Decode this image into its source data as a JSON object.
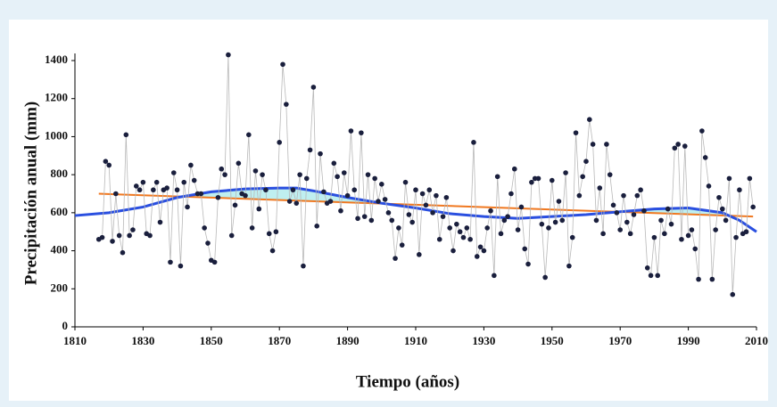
{
  "chart_data": {
    "type": "scatter",
    "xlabel": "Tiempo (años)",
    "ylabel": "Precipitación anual (mm)",
    "xlim": [
      1810,
      2010
    ],
    "xticks": [
      1810,
      1830,
      1850,
      1870,
      1890,
      1910,
      1930,
      1950,
      1970,
      1990,
      2010
    ],
    "ylim": [
      0,
      1400
    ],
    "yticks": [
      0,
      200,
      400,
      600,
      800,
      1000,
      1200,
      1400
    ],
    "series": [
      {
        "color": "#1a1f3d",
        "x": [
          1817,
          1818,
          1819,
          1820,
          1821,
          1822,
          1823,
          1824,
          1825,
          1826,
          1827,
          1828,
          1829,
          1830,
          1831,
          1832,
          1833,
          1834,
          1835,
          1836,
          1837,
          1838,
          1839,
          1840,
          1841,
          1842,
          1843,
          1844,
          1845,
          1846,
          1847,
          1848,
          1849,
          1850,
          1851,
          1852,
          1853,
          1854,
          1855,
          1856,
          1857,
          1858,
          1859,
          1860,
          1861,
          1862,
          1863,
          1864,
          1865,
          1866,
          1867,
          1868,
          1869,
          1870,
          1871,
          1872,
          1873,
          1874,
          1875,
          1876,
          1877,
          1878,
          1879,
          1880,
          1881,
          1882,
          1883,
          1884,
          1885,
          1886,
          1887,
          1888,
          1889,
          1890,
          1891,
          1892,
          1893,
          1894,
          1895,
          1896,
          1897,
          1898,
          1899,
          1900,
          1901,
          1902,
          1903,
          1904,
          1905,
          1906,
          1907,
          1908,
          1909,
          1910,
          1911,
          1912,
          1913,
          1914,
          1915,
          1916,
          1917,
          1918,
          1919,
          1920,
          1921,
          1922,
          1923,
          1924,
          1925,
          1926,
          1927,
          1928,
          1929,
          1930,
          1931,
          1932,
          1933,
          1934,
          1935,
          1936,
          1937,
          1938,
          1939,
          1940,
          1941,
          1942,
          1943,
          1944,
          1945,
          1946,
          1947,
          1948,
          1949,
          1950,
          1951,
          1952,
          1953,
          1954,
          1955,
          1956,
          1957,
          1958,
          1959,
          1960,
          1961,
          1962,
          1963,
          1964,
          1965,
          1966,
          1967,
          1968,
          1969,
          1970,
          1971,
          1972,
          1973,
          1974,
          1975,
          1976,
          1977,
          1978,
          1979,
          1980,
          1981,
          1982,
          1983,
          1984,
          1985,
          1986,
          1987,
          1988,
          1989,
          1990,
          1991,
          1992,
          1993,
          1994,
          1995,
          1996,
          1997,
          1998,
          1999,
          2000,
          2001,
          2002,
          2003,
          2004,
          2005,
          2006,
          2007,
          2008,
          2009
        ],
        "values": [
          460,
          470,
          870,
          850,
          450,
          700,
          480,
          390,
          1010,
          480,
          510,
          740,
          720,
          760,
          490,
          480,
          720,
          760,
          550,
          720,
          730,
          340,
          810,
          720,
          320,
          760,
          630,
          850,
          770,
          700,
          700,
          520,
          440,
          350,
          340,
          680,
          830,
          800,
          1430,
          480,
          640,
          860,
          700,
          690,
          1010,
          520,
          820,
          620,
          800,
          720,
          490,
          400,
          500,
          970,
          1380,
          1170,
          660,
          720,
          650,
          800,
          320,
          780,
          930,
          1260,
          530,
          910,
          710,
          650,
          660,
          860,
          790,
          610,
          810,
          690,
          1030,
          720,
          570,
          1020,
          580,
          800,
          560,
          780,
          660,
          750,
          670,
          600,
          560,
          360,
          520,
          430,
          760,
          590,
          550,
          720,
          380,
          700,
          640,
          720,
          600,
          690,
          460,
          580,
          680,
          520,
          400,
          540,
          500,
          470,
          520,
          460,
          970,
          370,
          420,
          400,
          520,
          610,
          270,
          790,
          490,
          560,
          580,
          700,
          830,
          510,
          630,
          410,
          330,
          760,
          780,
          780,
          540,
          260,
          520,
          770,
          550,
          660,
          560,
          810,
          320,
          470,
          1020,
          690,
          790,
          870,
          1090,
          960,
          560,
          730,
          490,
          960,
          800,
          640,
          600,
          510,
          690,
          550,
          490,
          590,
          690,
          720,
          610,
          310,
          270,
          470,
          270,
          560,
          490,
          620,
          540,
          940,
          960,
          460,
          950,
          480,
          510,
          410,
          250,
          1030,
          890,
          740,
          250,
          510,
          680,
          620,
          560,
          780,
          170,
          470,
          720,
          490,
          500,
          780,
          630
        ]
      },
      {
        "color": "#f07820",
        "x": [
          1817,
          2009
        ],
        "values": [
          700,
          580
        ]
      },
      {
        "color": "#2a4fe0",
        "x": [
          1810,
          1820,
          1830,
          1840,
          1850,
          1860,
          1870,
          1875,
          1880,
          1890,
          1900,
          1910,
          1920,
          1930,
          1940,
          1950,
          1960,
          1970,
          1980,
          1990,
          2000,
          2005,
          2010
        ],
        "values": [
          585,
          600,
          630,
          680,
          710,
          725,
          730,
          730,
          715,
          680,
          650,
          625,
          595,
          580,
          570,
          580,
          590,
          605,
          620,
          625,
          600,
          560,
          500
        ]
      }
    ]
  }
}
